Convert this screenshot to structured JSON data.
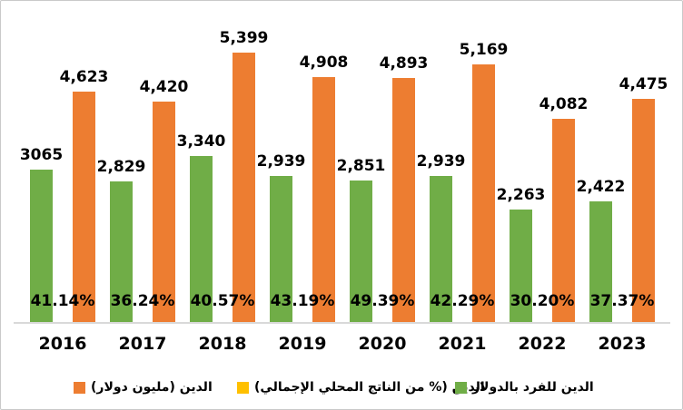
{
  "chart_data": {
    "type": "bar",
    "title": "",
    "xlabel": "",
    "ylabel": "",
    "categories": [
      "2016",
      "2017",
      "2018",
      "2019",
      "2020",
      "2021",
      "2022",
      "2023"
    ],
    "series": [
      {
        "name": "الدين للفرد بالدولار",
        "color": "#70AD47",
        "values": [
          3065,
          2829,
          3340,
          2939,
          2851,
          2939,
          2263,
          2422
        ],
        "labels": [
          "3065",
          "2,829",
          "3,340",
          "2,939",
          "2,851",
          "2,939",
          "2,263",
          "2,422"
        ],
        "bars_visible": true
      },
      {
        "name": "الدين (% من الناتج المحلي الإجمالي)",
        "color": "#FFC000",
        "values": [
          41.14,
          36.24,
          40.57,
          43.19,
          49.39,
          42.29,
          30.2,
          37.37
        ],
        "labels": [
          "41.14%",
          "36.24%",
          "40.57%",
          "43.19%",
          "49.39%",
          "42.29%",
          "30.20%",
          "37.37%"
        ],
        "bars_visible": false
      },
      {
        "name": "الدين (مليون دولار)",
        "color": "#ED7D31",
        "values": [
          4623,
          4420,
          5399,
          4908,
          4893,
          5169,
          4082,
          4475
        ],
        "labels": [
          "4,623",
          "4,420",
          "5,399",
          "4,908",
          "4,893",
          "5,169",
          "4,082",
          "4,475"
        ],
        "bars_visible": true
      }
    ],
    "ylim": [
      0,
      5472
    ],
    "gridlines": false,
    "axis_line_color": "#D9D9D9",
    "label_color": "#000000",
    "legend_position": "bottom"
  },
  "legend": {
    "items": [
      {
        "label": "الدين (مليون دولار)",
        "color": "#ED7D31"
      },
      {
        "label": "الدين (% من الناتج المحلي الإجمالي)",
        "color": "#FFC000"
      },
      {
        "label": "الدين للفرد بالدولار",
        "color": "#70AD47"
      }
    ]
  }
}
